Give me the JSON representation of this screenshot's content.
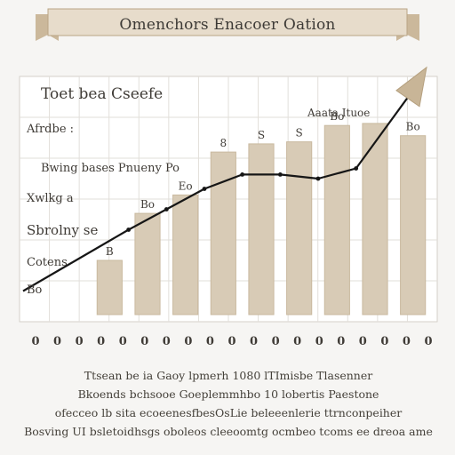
{
  "banner": {
    "title": "Omenchors Enacoer Oation"
  },
  "chart_data": {
    "type": "bar",
    "title": "Toet bea Cseefe",
    "annotation": "Aaata Ituoe",
    "categories": [
      "0",
      "0",
      "0",
      "0",
      "0",
      "0",
      "0",
      "0",
      "0",
      "0",
      "0",
      "0",
      "0",
      "0",
      "0",
      "0",
      "0",
      "0",
      "0"
    ],
    "x": [
      1,
      2,
      3,
      4,
      5,
      6,
      7,
      8,
      9
    ],
    "values": [
      3.0,
      5.3,
      6.2,
      8.3,
      8.7,
      8.8,
      9.6,
      9.7,
      9.1
    ],
    "bar_labels": [
      "B",
      "Bo",
      "Eo",
      "8",
      "S",
      "S",
      "Bo",
      "",
      "Bo"
    ],
    "line": {
      "name": "",
      "values": [
        1.5,
        4.5,
        5.5,
        6.5,
        7.2,
        7.2,
        7.0,
        7.5,
        11.4
      ]
    },
    "y_tick_labels": [
      "Afrdbe :",
      "Bwing bases Pnueny Po",
      "Xwlkg a",
      "Sbrolny se",
      "Cotens",
      "Bo"
    ],
    "ylim": [
      0,
      12
    ],
    "grid": true,
    "colors": {
      "bar": "#d8cbb6",
      "bar_edge": "#c9b99f",
      "line": "#161616",
      "grid": "#e2dfda",
      "banner": "#e7dccb"
    }
  },
  "footer": [
    "Ttsean be ia Gaoy lpmerh 1080 lTImisbe Tlasenner",
    "Bkoends bchsooe Goeplemmhbo 10 lobertis Paestone",
    "ofecceo lb sita ecoeenesfbesOsLie beleeenlerie ttrnconpeiher",
    "Bosving UI bsletoidhsgs oboleos cleeoomtg ocmbeo tcoms ee dreoa ame"
  ]
}
